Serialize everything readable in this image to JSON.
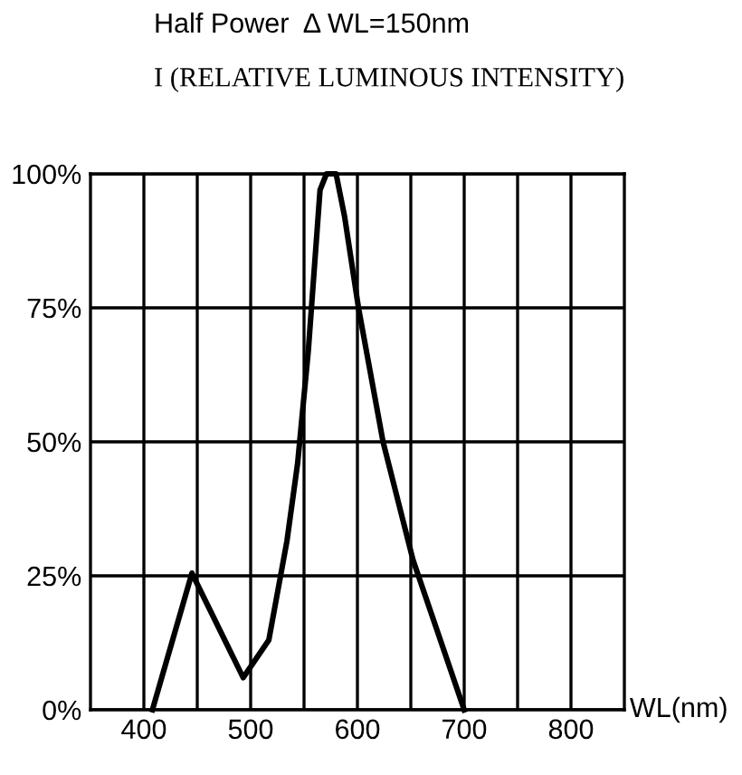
{
  "chart_data": {
    "type": "line",
    "title": "Half Power  Δ WL=150nm",
    "subtitle": "I (RELATIVE LUMINOUS INTENSITY)",
    "xlabel": "WL(nm)",
    "series": [
      {
        "color": "#000000",
        "x": [
          408,
          445,
          493,
          517,
          534,
          544,
          554,
          565,
          571,
          580,
          588,
          601,
          624,
          652,
          700
        ],
        "values": [
          0,
          25.5,
          6,
          13,
          31.5,
          46,
          67,
          97,
          100,
          100,
          92,
          75,
          50,
          28,
          0
        ]
      }
    ],
    "xlim": [
      350,
      850
    ],
    "xticks": [
      {
        "value": 400,
        "label": "400"
      },
      {
        "value": 450,
        "label": null
      },
      {
        "value": 500,
        "label": "500"
      },
      {
        "value": 550,
        "label": null
      },
      {
        "value": 600,
        "label": "600"
      },
      {
        "value": 650,
        "label": null
      },
      {
        "value": 700,
        "label": "700"
      },
      {
        "value": 750,
        "label": null
      },
      {
        "value": 800,
        "label": "800"
      }
    ],
    "ylim": [
      0,
      100
    ],
    "yticks": [
      {
        "value": 0,
        "label": "0%"
      },
      {
        "value": 25,
        "label": "25%"
      },
      {
        "value": 50,
        "label": "50%"
      },
      {
        "value": 75,
        "label": "75%"
      },
      {
        "value": 100,
        "label": "100%"
      }
    ],
    "grid": true,
    "legend": false,
    "marker": "none",
    "line_style": "solid"
  }
}
